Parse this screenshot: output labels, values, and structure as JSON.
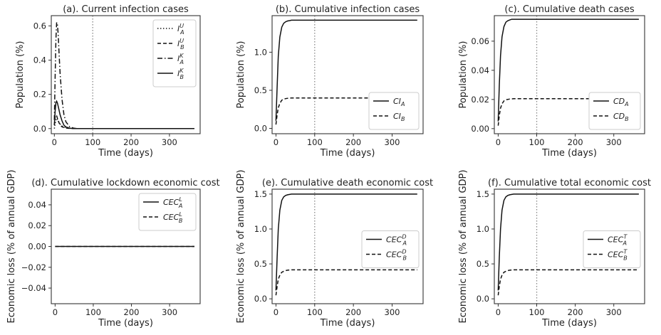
{
  "chart_data": [
    {
      "type": "line",
      "title": "(a). Current infection cases",
      "xlabel": "Time (days)",
      "ylabel": "Population (%)",
      "xlim": [
        -8,
        380
      ],
      "ylim": [
        -0.03,
        0.66
      ],
      "xticks": [
        0,
        100,
        200,
        300
      ],
      "yticks": [
        0.0,
        0.2,
        0.4,
        0.6
      ],
      "ytick_labels": [
        "0.0",
        "0.2",
        "0.4",
        "0.6"
      ],
      "vline": 100,
      "legend_position": "top-right",
      "series": [
        {
          "name": "I_A^U",
          "label": "I",
          "sup": "U",
          "sub": "A",
          "style": "dotted",
          "x": [
            0,
            2,
            4,
            6,
            8,
            10,
            14,
            20,
            30,
            40,
            60,
            365
          ],
          "y": [
            0.0,
            0.03,
            0.05,
            0.06,
            0.055,
            0.045,
            0.03,
            0.015,
            0.005,
            0.002,
            0.0,
            0.0
          ]
        },
        {
          "name": "I_B^U",
          "label": "I",
          "sup": "U",
          "sub": "B",
          "style": "dashed",
          "x": [
            0,
            2,
            4,
            6,
            8,
            10,
            14,
            20,
            30,
            40,
            60,
            365
          ],
          "y": [
            0.02,
            0.07,
            0.08,
            0.075,
            0.06,
            0.045,
            0.025,
            0.01,
            0.003,
            0.001,
            0.0,
            0.0
          ]
        },
        {
          "name": "I_A^K",
          "label": "I",
          "sup": "K",
          "sub": "A",
          "style": "dashdot",
          "x": [
            0,
            2,
            4,
            6,
            8,
            10,
            12,
            15,
            20,
            25,
            30,
            40,
            50,
            60,
            365
          ],
          "y": [
            0.05,
            0.3,
            0.52,
            0.62,
            0.61,
            0.55,
            0.45,
            0.32,
            0.17,
            0.08,
            0.04,
            0.01,
            0.003,
            0.0,
            0.0
          ]
        },
        {
          "name": "I_B^K",
          "label": "I",
          "sup": "K",
          "sub": "B",
          "style": "solid",
          "x": [
            0,
            2,
            4,
            6,
            8,
            10,
            12,
            15,
            20,
            25,
            30,
            40,
            50,
            60,
            365
          ],
          "y": [
            0.02,
            0.1,
            0.15,
            0.16,
            0.15,
            0.13,
            0.11,
            0.08,
            0.045,
            0.02,
            0.01,
            0.002,
            0.0,
            0.0,
            0.0
          ]
        }
      ]
    },
    {
      "type": "line",
      "title": "(b). Cumulative infection cases",
      "xlabel": "Time (days)",
      "ylabel": "Population (%)",
      "xlim": [
        -10,
        380
      ],
      "ylim": [
        -0.07,
        1.48
      ],
      "xticks": [
        0,
        100,
        200,
        300
      ],
      "yticks": [
        0.0,
        0.5,
        1.0
      ],
      "ytick_labels": [
        "0.0",
        "0.5",
        "1.0"
      ],
      "vline": 100,
      "legend_position": "bottom-right",
      "series": [
        {
          "name": "CI_A",
          "label": "CI",
          "sup": "",
          "sub": "A",
          "style": "solid",
          "x": [
            0,
            3,
            6,
            10,
            15,
            20,
            25,
            30,
            35,
            40,
            50,
            60,
            365
          ],
          "y": [
            0.1,
            0.55,
            0.95,
            1.2,
            1.33,
            1.38,
            1.4,
            1.41,
            1.415,
            1.42,
            1.42,
            1.42,
            1.42
          ]
        },
        {
          "name": "CI_B",
          "label": "CI",
          "sup": "",
          "sub": "B",
          "style": "dashed",
          "x": [
            0,
            3,
            6,
            10,
            15,
            20,
            25,
            30,
            40,
            50,
            60,
            365
          ],
          "y": [
            0.05,
            0.18,
            0.27,
            0.33,
            0.37,
            0.385,
            0.39,
            0.395,
            0.4,
            0.4,
            0.4,
            0.4
          ]
        }
      ]
    },
    {
      "type": "line",
      "title": "(c). Cumulative death cases",
      "xlabel": "Time (days)",
      "ylabel": "Population (%)",
      "xlim": [
        -10,
        380
      ],
      "ylim": [
        -0.0035,
        0.0775
      ],
      "xticks": [
        0,
        100,
        200,
        300
      ],
      "yticks": [
        0.0,
        0.02,
        0.04,
        0.06
      ],
      "ytick_labels": [
        "0.00",
        "0.02",
        "0.04",
        "0.06"
      ],
      "vline": 100,
      "legend_position": "bottom-right",
      "series": [
        {
          "name": "CD_A",
          "label": "CD",
          "sup": "",
          "sub": "A",
          "style": "solid",
          "x": [
            0,
            3,
            6,
            10,
            15,
            20,
            25,
            30,
            35,
            40,
            50,
            60,
            365
          ],
          "y": [
            0.005,
            0.03,
            0.05,
            0.063,
            0.07,
            0.073,
            0.074,
            0.0745,
            0.075,
            0.075,
            0.075,
            0.075,
            0.075
          ]
        },
        {
          "name": "CD_B",
          "label": "CD",
          "sup": "",
          "sub": "B",
          "style": "dashed",
          "x": [
            0,
            3,
            6,
            10,
            15,
            20,
            25,
            30,
            40,
            50,
            60,
            365
          ],
          "y": [
            0.002,
            0.009,
            0.014,
            0.017,
            0.019,
            0.0198,
            0.02,
            0.0203,
            0.0205,
            0.0205,
            0.0205,
            0.0205
          ]
        }
      ]
    },
    {
      "type": "line",
      "title": "(d). Cumulative lockdown economic cost",
      "xlabel": "Time (days)",
      "ylabel": "Economic loss (% of annual GDP)",
      "xlim": [
        -10,
        380
      ],
      "ylim": [
        -0.055,
        0.055
      ],
      "xticks": [
        0,
        100,
        200,
        300
      ],
      "yticks": [
        -0.04,
        -0.02,
        0.0,
        0.02,
        0.04
      ],
      "ytick_labels": [
        "−0.04",
        "−0.02",
        "0.00",
        "0.02",
        "0.04"
      ],
      "vline": null,
      "legend_position": "top-right",
      "series": [
        {
          "name": "CEC_A^L",
          "label": "CEC",
          "sup": "L",
          "sub": "A",
          "style": "solid",
          "x": [
            0,
            365
          ],
          "y": [
            0.0,
            0.0
          ]
        },
        {
          "name": "CEC_B^L",
          "label": "CEC",
          "sup": "L",
          "sub": "B",
          "style": "dashed",
          "x": [
            0,
            365
          ],
          "y": [
            0.0,
            0.0
          ]
        }
      ]
    },
    {
      "type": "line",
      "title": "(e). Cumulative death economic cost",
      "xlabel": "Time (days)",
      "ylabel": "Economic loss (% of annual GDP)",
      "xlim": [
        -10,
        380
      ],
      "ylim": [
        -0.07,
        1.57
      ],
      "xticks": [
        0,
        100,
        200,
        300
      ],
      "yticks": [
        0.0,
        0.5,
        1.0,
        1.5
      ],
      "ytick_labels": [
        "0.0",
        "0.5",
        "1.0",
        "1.5"
      ],
      "vline": 100,
      "legend_position": "center-right",
      "series": [
        {
          "name": "CEC_A^D",
          "label": "CEC",
          "sup": "D",
          "sub": "A",
          "style": "solid",
          "x": [
            0,
            3,
            6,
            10,
            15,
            20,
            25,
            30,
            35,
            40,
            50,
            60,
            365
          ],
          "y": [
            0.12,
            0.6,
            1.0,
            1.27,
            1.41,
            1.46,
            1.48,
            1.49,
            1.495,
            1.5,
            1.5,
            1.5,
            1.5
          ]
        },
        {
          "name": "CEC_B^D",
          "label": "CEC",
          "sup": "D",
          "sub": "B",
          "style": "dashed",
          "x": [
            0,
            3,
            6,
            10,
            15,
            20,
            25,
            30,
            40,
            50,
            60,
            365
          ],
          "y": [
            0.05,
            0.18,
            0.28,
            0.34,
            0.38,
            0.395,
            0.405,
            0.41,
            0.415,
            0.415,
            0.415,
            0.415
          ]
        }
      ]
    },
    {
      "type": "line",
      "title": "(f). Cumulative total economic cost",
      "xlabel": "Time (days)",
      "ylabel": "Economic loss (% of annual GDP)",
      "xlim": [
        -10,
        380
      ],
      "ylim": [
        -0.07,
        1.57
      ],
      "xticks": [
        0,
        100,
        200,
        300
      ],
      "yticks": [
        0.0,
        0.5,
        1.0,
        1.5
      ],
      "ytick_labels": [
        "0.0",
        "0.5",
        "1.0",
        "1.5"
      ],
      "vline": 100,
      "legend_position": "center-right",
      "series": [
        {
          "name": "CEC_A^T",
          "label": "CEC",
          "sup": "T",
          "sub": "A",
          "style": "solid",
          "x": [
            0,
            3,
            6,
            10,
            15,
            20,
            25,
            30,
            35,
            40,
            50,
            60,
            365
          ],
          "y": [
            0.12,
            0.6,
            1.0,
            1.27,
            1.41,
            1.46,
            1.48,
            1.49,
            1.495,
            1.5,
            1.5,
            1.5,
            1.5
          ]
        },
        {
          "name": "CEC_B^T",
          "label": "CEC",
          "sup": "T",
          "sub": "B",
          "style": "dashed",
          "x": [
            0,
            3,
            6,
            10,
            15,
            20,
            25,
            30,
            40,
            50,
            60,
            365
          ],
          "y": [
            0.05,
            0.18,
            0.28,
            0.34,
            0.38,
            0.395,
            0.405,
            0.41,
            0.415,
            0.415,
            0.415,
            0.415
          ]
        }
      ]
    }
  ]
}
